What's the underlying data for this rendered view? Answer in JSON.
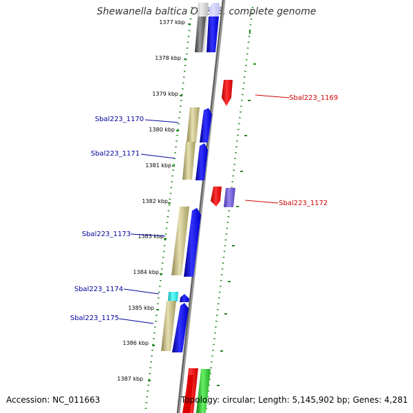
{
  "title": "Shewanella baltica OS223, complete genome",
  "footer": {
    "accession": "Accession: NC_011663",
    "stats": "Topology: circular; Length: 5,145,902 bp; Genes: 4,281"
  },
  "ticks": [
    "1377 kbp",
    "1378 kbp",
    "1379 kbp",
    "1380 kbp",
    "1381 kbp",
    "1382 kbp",
    "1383 kbp",
    "1384 kbp",
    "1385 kbp",
    "1386 kbp",
    "1387 kbp"
  ],
  "gene_labels": [
    {
      "text": "Sbal223_1169",
      "color": "#cc0000"
    },
    {
      "text": "Sbal223_1170",
      "color": "#000099"
    },
    {
      "text": "Sbal223_1171",
      "color": "#000099"
    },
    {
      "text": "Sbal223_1172",
      "color": "#cc0000"
    },
    {
      "text": "Sbal223_1173",
      "color": "#000099"
    },
    {
      "text": "Sbal223_1174",
      "color": "#000099"
    },
    {
      "text": "Sbal223_1175",
      "color": "#000099"
    }
  ],
  "colors": {
    "forward_gene": "#0000ee",
    "reverse_gene": "#ee0000",
    "feature_tan": "#b5ab6b",
    "feature_gray": "#555555",
    "feature_cyan": "#22dddd",
    "feature_purple": "#6655cc",
    "feature_green": "#22bb22",
    "backbone": "#888888",
    "track_dots": "#228822"
  }
}
